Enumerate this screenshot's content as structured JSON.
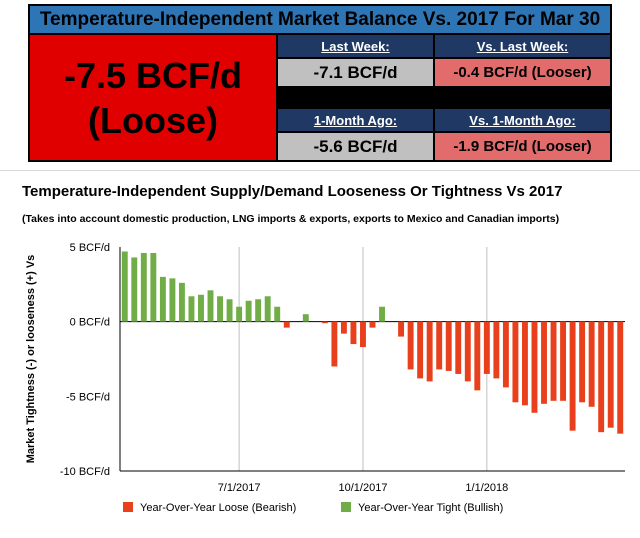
{
  "header": {
    "title": "Temperature-Independent Market Balance Vs. 2017 For Mar 30",
    "big_value": "-7.5 BCF/d",
    "big_status": "(Loose)",
    "last_week_label": "Last Week:",
    "last_week_value": "-7.1 BCF/d",
    "vs_last_week_label": "Vs. Last Week:",
    "vs_last_week_value": "-0.4 BCF/d (Looser)",
    "month_ago_label": "1-Month Ago:",
    "month_ago_value": "-5.6 BCF/d",
    "vs_month_ago_label": "Vs. 1-Month Ago:",
    "vs_month_ago_value": "-1.9 BCF/d (Looser)"
  },
  "colors": {
    "title_bar": "#2e75b6",
    "big_box": "#e00000",
    "sub_header": "#1f3864",
    "gray_cell": "#c0c0c0",
    "pink_cell": "#e26b6b",
    "loose": "#e8401c",
    "tight": "#70ad47"
  },
  "chart_data": {
    "type": "bar",
    "title": "Temperature-Independent Supply/Demand Looseness Or Tightness Vs 2017",
    "subtitle": "(Takes into account domestic production, LNG imports & exports, exports to Mexico and Canadian imports)",
    "ylabel": "Market Tightness (-) or looseness (+) Vs",
    "ylim": [
      -10,
      5
    ],
    "yticks": [
      5,
      0,
      -5,
      -10
    ],
    "ytick_labels": [
      "5 BCF/d",
      "0 BCF/d",
      "-5 BCF/d",
      "-10 BCF/d"
    ],
    "xtick_labels": [
      "7/1/2017",
      "10/1/2017",
      "1/1/2018"
    ],
    "xtick_positions": [
      12.5,
      25.5,
      38.5
    ],
    "grid": "vertical",
    "legend": "bottom",
    "series": [
      {
        "name": "Year-Over-Year Loose (Bearish)",
        "color": "#e8401c"
      },
      {
        "name": "Year-Over-Year Tight (Bullish)",
        "color": "#70ad47"
      }
    ],
    "values": [
      4.7,
      4.3,
      4.6,
      4.6,
      3.0,
      2.9,
      2.6,
      1.7,
      1.8,
      2.1,
      1.7,
      1.5,
      1.0,
      1.4,
      1.5,
      1.7,
      1.0,
      -0.4,
      0,
      0.5,
      0,
      -0.1,
      -3.0,
      -0.8,
      -1.5,
      -1.7,
      -0.4,
      1.0,
      0,
      -1.0,
      -3.2,
      -3.8,
      -4.0,
      -3.2,
      -3.3,
      -3.5,
      -4.0,
      -4.6,
      -3.5,
      -3.8,
      -4.4,
      -5.4,
      -5.6,
      -6.1,
      -5.5,
      -5.3,
      -5.3,
      -7.3,
      -5.4,
      -5.7,
      -7.4,
      -7.1,
      -7.5
    ]
  }
}
